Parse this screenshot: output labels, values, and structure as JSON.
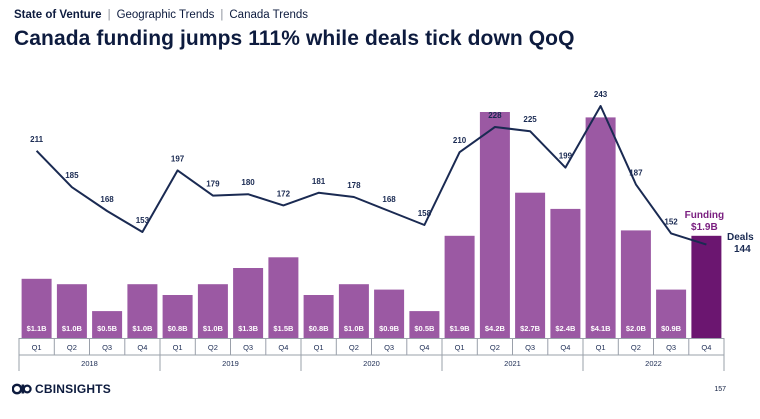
{
  "header": {
    "breadcrumb": [
      "State of Venture",
      "Geographic Trends",
      "Canada Trends"
    ],
    "title": "Canada funding jumps 111% while deals tick down QoQ"
  },
  "footer": {
    "brand": "CBINSIGHTS",
    "page_number": "157"
  },
  "chart_data": {
    "type": "bar",
    "categories": [
      "Q1",
      "Q2",
      "Q3",
      "Q4",
      "Q1",
      "Q2",
      "Q3",
      "Q4",
      "Q1",
      "Q2",
      "Q3",
      "Q4",
      "Q1",
      "Q2",
      "Q3",
      "Q4",
      "Q1",
      "Q2",
      "Q3",
      "Q4"
    ],
    "years": [
      "2018",
      "2019",
      "2020",
      "2021",
      "2022"
    ],
    "funding_values": [
      1.1,
      1.0,
      0.5,
      1.0,
      0.8,
      1.0,
      1.3,
      1.5,
      0.8,
      1.0,
      0.9,
      0.5,
      1.9,
      4.2,
      2.7,
      2.4,
      4.1,
      2.0,
      0.9,
      1.9
    ],
    "funding_labels": [
      "$1.1B",
      "$1.0B",
      "$0.5B",
      "$1.0B",
      "$0.8B",
      "$1.0B",
      "$1.3B",
      "$1.5B",
      "$0.8B",
      "$1.0B",
      "$0.9B",
      "$0.5B",
      "$1.9B",
      "$4.2B",
      "$2.7B",
      "$2.4B",
      "$4.1B",
      "$2.0B",
      "$0.9B"
    ],
    "deals_values": [
      211,
      185,
      168,
      153,
      197,
      179,
      180,
      172,
      181,
      178,
      168,
      158,
      210,
      228,
      225,
      199,
      243,
      187,
      152,
      144
    ],
    "deals_labels": [
      "211",
      "185",
      "168",
      "153",
      "197",
      "179",
      "180",
      "172",
      "181",
      "178",
      "168",
      "158",
      "210",
      "228",
      "225",
      "199",
      "243",
      "187",
      "152"
    ],
    "callouts": {
      "funding_name": "Funding",
      "funding_value": "$1.9B",
      "deals_name": "Deals",
      "deals_value": "144"
    },
    "colors": {
      "bar": "#9b59a3",
      "bar_highlight": "#6b1670",
      "deals_line": "#1a2a52",
      "funding_text": "#7a1f80",
      "axis_text": "#1a2a52"
    }
  }
}
